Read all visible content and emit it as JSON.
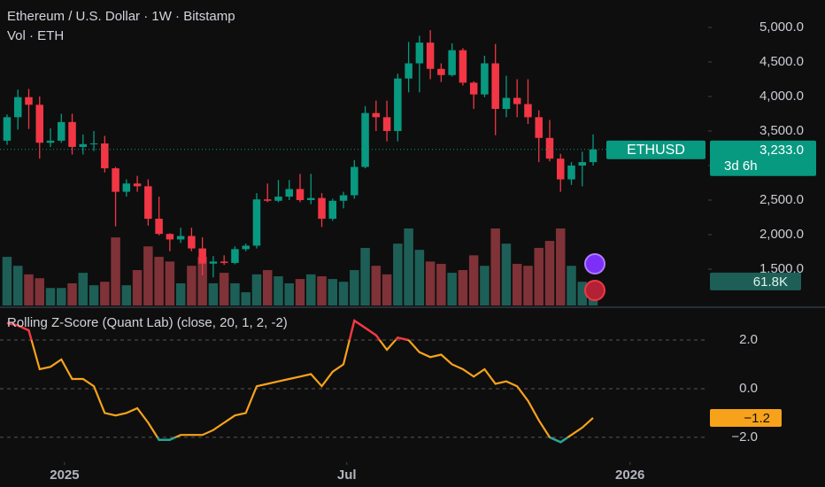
{
  "chart_data": [
    {
      "type": "candlestick",
      "title": "Ethereum / U.S. Dollar · 1W · Bitstamp",
      "subtitle": "Vol · ETH",
      "symbol_label": "ETHUSD",
      "last_price_label": "3,233.0",
      "countdown": "3d 6h",
      "open": [
        3360,
        3700,
        3990,
        3880,
        3330,
        3360,
        3630,
        3270,
        3310,
        3320,
        2960,
        2620,
        2740,
        2700,
        2230,
        2010,
        1930,
        1980,
        1800,
        1580,
        1610,
        1590,
        1790,
        1840,
        2510,
        2490,
        2550,
        2660,
        2500,
        2530,
        2230,
        2490,
        2570,
        2980,
        3760,
        3700,
        3500,
        4260,
        4480,
        4780,
        4400,
        4310,
        4670,
        4200,
        4030,
        4480,
        3820,
        3980,
        3890,
        3700,
        3400,
        3100,
        2800,
        3000,
        3050
      ],
      "high": [
        3740,
        4100,
        4110,
        4000,
        3540,
        3750,
        3750,
        3450,
        3500,
        3430,
        2980,
        2800,
        2850,
        2800,
        2550,
        2020,
        2100,
        2100,
        1960,
        1690,
        1700,
        1830,
        1870,
        2600,
        2740,
        2790,
        2790,
        2880,
        2880,
        2600,
        2520,
        2620,
        3080,
        3860,
        3940,
        3940,
        4330,
        4790,
        4880,
        4960,
        4480,
        4770,
        4700,
        4220,
        4590,
        4760,
        4300,
        4250,
        4250,
        3800,
        3660,
        3170,
        3050,
        3200,
        3450
      ],
      "low": [
        3300,
        3520,
        3530,
        3100,
        3270,
        3330,
        3160,
        3160,
        3210,
        2900,
        2120,
        2550,
        2620,
        2130,
        1990,
        1760,
        1880,
        1760,
        1410,
        1380,
        1560,
        1570,
        1760,
        1800,
        2470,
        2470,
        2500,
        2470,
        2440,
        2110,
        2200,
        2380,
        2520,
        2960,
        3500,
        3350,
        3350,
        4060,
        4060,
        4250,
        4210,
        4290,
        4160,
        3820,
        3990,
        3440,
        3700,
        3700,
        3600,
        3050,
        3060,
        2620,
        2720,
        2700,
        3000
      ],
      "close": [
        3700,
        3990,
        3880,
        3330,
        3360,
        3630,
        3270,
        3310,
        3320,
        2960,
        2620,
        2740,
        2700,
        2230,
        2010,
        1930,
        1980,
        1800,
        1580,
        1610,
        1590,
        1790,
        1840,
        2510,
        2490,
        2550,
        2660,
        2500,
        2530,
        2230,
        2490,
        2570,
        2980,
        3760,
        3700,
        3500,
        4260,
        4480,
        4780,
        4400,
        4310,
        4670,
        4200,
        4030,
        4480,
        3820,
        3980,
        3890,
        3700,
        3400,
        3100,
        2800,
        3000,
        3050,
        3233
      ],
      "volume": [
        125,
        102,
        80,
        70,
        45,
        45,
        57,
        84,
        52,
        61,
        175,
        52,
        91,
        152,
        125,
        113,
        57,
        102,
        125,
        57,
        84,
        57,
        34,
        80,
        91,
        75,
        57,
        68,
        80,
        75,
        68,
        61,
        91,
        148,
        102,
        80,
        159,
        198,
        143,
        113,
        107,
        84,
        91,
        129,
        102,
        198,
        159,
        107,
        102,
        148,
        166,
        198,
        102,
        61,
        61.8
      ],
      "volume_last_label": "61.8K",
      "vlim": [
        0,
        330
      ],
      "up_color": "#089981",
      "down_color": "#f23645",
      "up_volume_color": "#1d5f56",
      "down_volume_color": "#7f3237",
      "xlim": [
        -0.65,
        64.6
      ],
      "ylim": [
        974,
        5397
      ],
      "yticks": [
        {
          "value": 5000,
          "label": "5,000.0"
        },
        {
          "value": 4500,
          "label": "4,500.0"
        },
        {
          "value": 4000,
          "label": "4,000.0"
        },
        {
          "value": 3500,
          "label": "3,500.0"
        },
        {
          "value": 3000,
          "label": "3,000.0"
        },
        {
          "value": 2500,
          "label": "2,500.0"
        },
        {
          "value": 2000,
          "label": "2,000.0"
        },
        {
          "value": 1500,
          "label": "1,500.0"
        }
      ]
    },
    {
      "type": "line",
      "title": "Rolling Z-Score (Quant Lab) (close, 20, 1, 2, -2)",
      "values": [
        2.7,
        2.6,
        2.4,
        0.8,
        0.9,
        1.2,
        0.4,
        0.4,
        0.1,
        -1.0,
        -1.1,
        -1.0,
        -0.8,
        -1.4,
        -2.1,
        -2.1,
        -1.9,
        -1.9,
        -1.9,
        -1.7,
        -1.4,
        -1.1,
        -1.0,
        0.1,
        0.2,
        0.3,
        0.4,
        0.5,
        0.6,
        0.1,
        0.7,
        1.0,
        2.8,
        2.5,
        2.2,
        1.6,
        2.1,
        2.0,
        1.5,
        1.3,
        1.4,
        1.0,
        0.8,
        0.5,
        0.8,
        0.2,
        0.3,
        0.1,
        -0.5,
        -1.3,
        -2.0,
        -2.2,
        -1.9,
        -1.6,
        -1.2
      ],
      "last_value_label": "−1.2",
      "color": "#f7a21b",
      "upper_color": "#f23645",
      "lower_color": "#26a69a",
      "upper_level": 2,
      "lower_level": -2,
      "xlim": [
        -0.65,
        64.6
      ],
      "xticks": [
        {
          "value": 5.3,
          "label": "2025"
        },
        {
          "value": 31.3,
          "label": "Jul"
        },
        {
          "value": 57.4,
          "label": "2026"
        }
      ],
      "ylim": [
        -2.95,
        3.24
      ],
      "yticks": [
        {
          "value": 2,
          "label": "2.0"
        },
        {
          "value": 0,
          "label": "0.0"
        },
        {
          "value": -2,
          "label": "−2.0"
        }
      ]
    }
  ]
}
